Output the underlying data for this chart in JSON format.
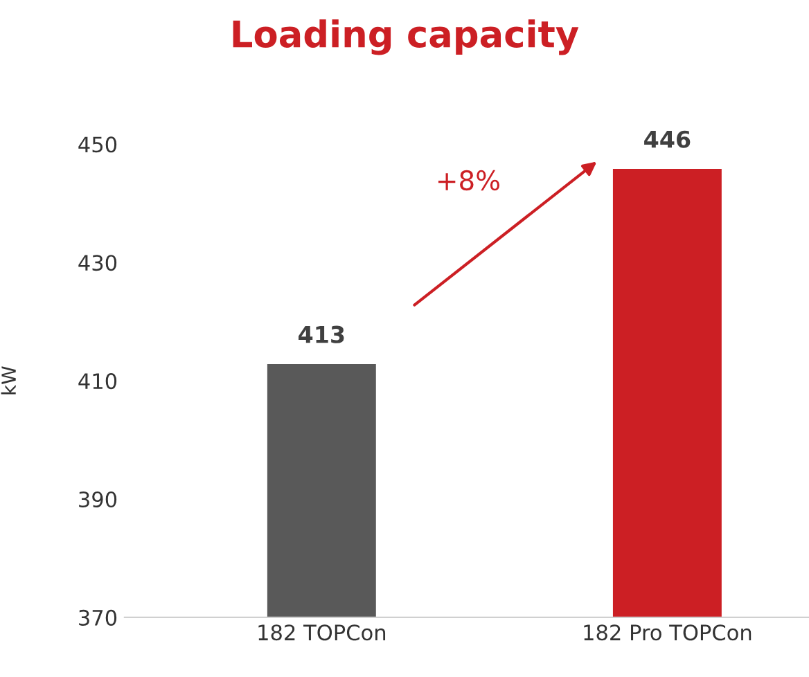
{
  "chart_data": {
    "type": "bar",
    "title": "Loading capacity",
    "ylabel": "kW",
    "categories": [
      "182 TOPCon",
      "182 Pro TOPCon"
    ],
    "values": [
      413,
      446
    ],
    "colors": [
      "#595959",
      "#cc1f24"
    ],
    "data_labels": true,
    "ylim": [
      370,
      450
    ],
    "yticks": [
      370,
      390,
      410,
      430,
      450
    ],
    "grid": false,
    "annotations": [
      "+8%"
    ]
  }
}
